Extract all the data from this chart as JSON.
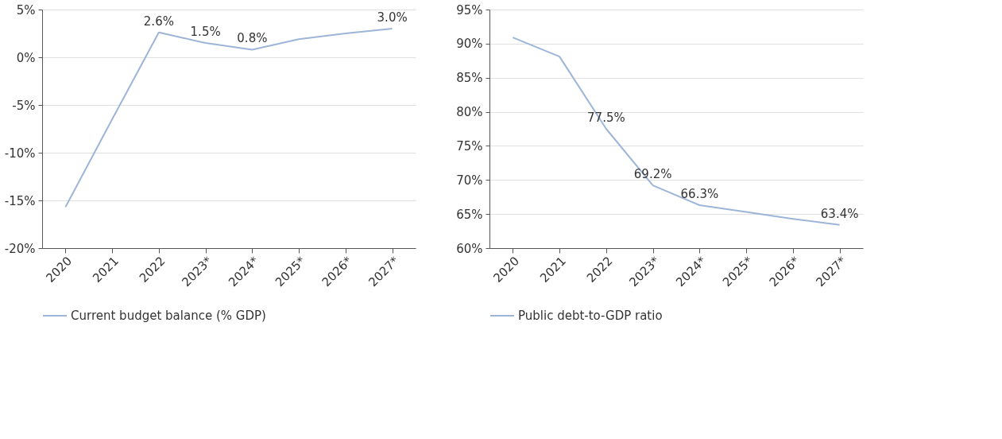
{
  "chart_data": [
    {
      "type": "line",
      "categories": [
        "2020",
        "2021",
        "2022",
        "2023*",
        "2024*",
        "2025*",
        "2026*",
        "2027*"
      ],
      "series": [
        {
          "name": "Current budget balance (% GDP)",
          "color": "#9db5d8",
          "values": [
            -15.7,
            -6.5,
            2.6,
            1.5,
            0.8,
            1.9,
            2.5,
            3.0
          ],
          "value_labels": [
            null,
            null,
            "2.6%",
            "1.5%",
            "0.8%",
            null,
            null,
            "3.0%"
          ]
        }
      ],
      "ylim": [
        -20,
        5
      ],
      "yticks": [
        {
          "value": -20,
          "label": "-20%"
        },
        {
          "value": -15,
          "label": "-15%"
        },
        {
          "value": -10,
          "label": "-10%"
        },
        {
          "value": -5,
          "label": "-5%"
        },
        {
          "value": 0,
          "label": "0%"
        },
        {
          "value": 5,
          "label": "5%"
        }
      ],
      "grid": "y",
      "legend": "bottom",
      "line_style": "solid",
      "marker": "none"
    },
    {
      "type": "line",
      "categories": [
        "2020",
        "2021",
        "2022",
        "2023*",
        "2024*",
        "2025*",
        "2026*",
        "2027*"
      ],
      "series": [
        {
          "name": "Public debt-to-GDP ratio",
          "color": "#9db5d8",
          "values": [
            90.9,
            88.1,
            77.5,
            69.2,
            66.3,
            65.3,
            64.3,
            63.4
          ],
          "value_labels": [
            null,
            null,
            "77.5%",
            "69.2%",
            "66.3%",
            null,
            null,
            "63.4%"
          ]
        }
      ],
      "ylim": [
        60,
        95
      ],
      "yticks": [
        {
          "value": 60,
          "label": "60%"
        },
        {
          "value": 65,
          "label": "65%"
        },
        {
          "value": 70,
          "label": "70%"
        },
        {
          "value": 75,
          "label": "75%"
        },
        {
          "value": 80,
          "label": "80%"
        },
        {
          "value": 85,
          "label": "85%"
        },
        {
          "value": 90,
          "label": "90%"
        },
        {
          "value": 95,
          "label": "95%"
        }
      ],
      "grid": "y",
      "legend": "bottom",
      "line_style": "solid",
      "marker": "none"
    }
  ]
}
